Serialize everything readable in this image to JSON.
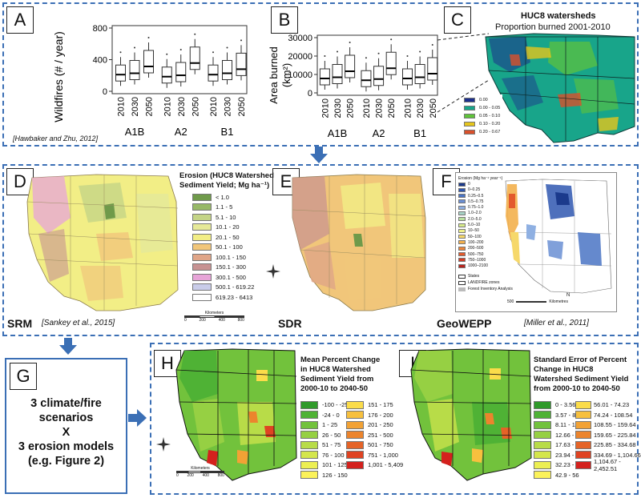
{
  "panel_a": {
    "letter": "A",
    "ylabel": "Wildfires (# / year)",
    "yticks": [
      "0",
      "400",
      "800"
    ],
    "xticks": [
      "2010",
      "2030",
      "2050",
      "2010",
      "2030",
      "2050",
      "2010",
      "2030",
      "2050"
    ],
    "groups": [
      "A1B",
      "A2",
      "B1"
    ],
    "citation": "[Hawbaker and Zhu, 2012]"
  },
  "panel_b": {
    "letter": "B",
    "ylabel": "Area burned",
    "ylabel_unit": "(km²)",
    "yticks": [
      "0",
      "10000",
      "20000",
      "30000"
    ],
    "xticks": [
      "2010",
      "2030",
      "2050",
      "2010",
      "2030",
      "2050",
      "2010",
      "2030",
      "2050"
    ],
    "groups": [
      "A1B",
      "A2",
      "B1"
    ]
  },
  "panel_c": {
    "letter": "C",
    "title": "HUC8 watersheds",
    "subtitle": "Proportion burned 2001-2010",
    "legend": [
      {
        "label": "0.00",
        "color": "#1d2f8c"
      },
      {
        "label": "0.00 - 0.05",
        "color": "#18a58a"
      },
      {
        "label": "0.05 - 0.10",
        "color": "#5fc33a"
      },
      {
        "label": "0.10 - 0.20",
        "color": "#e5c51c"
      },
      {
        "label": "0.20 - 0.67",
        "color": "#d9502b"
      }
    ]
  },
  "panel_d": {
    "letter": "D",
    "legend_title_1": "Erosion (HUC8 Watershed",
    "legend_title_2": "Sediment Yield; Mg ha⁻¹)",
    "legend": [
      {
        "label": "< 1.0",
        "color": "#6f9a4a"
      },
      {
        "label": "1.1 - 5",
        "color": "#97b867"
      },
      {
        "label": "5.1 - 10",
        "color": "#c4d486"
      },
      {
        "label": "10.1 - 20",
        "color": "#e6e998"
      },
      {
        "label": "20.1 - 50",
        "color": "#f2ee86"
      },
      {
        "label": "50.1 - 100",
        "color": "#f1c67a"
      },
      {
        "label": "100.1 - 150",
        "color": "#e0a587"
      },
      {
        "label": "150.1 - 300",
        "color": "#c79292"
      },
      {
        "label": "300.1 - 500",
        "color": "#e7a4d8"
      },
      {
        "label": "500.1 - 619.22",
        "color": "#c9cce9"
      },
      {
        "label": "619.23 - 6413",
        "color": "#ffffff"
      }
    ],
    "scale_label": "Kilometers",
    "scale_ticks": [
      "0",
      "200",
      "400",
      "800"
    ],
    "caption": "SRM",
    "citation": "[Sankey et al., 2015]"
  },
  "panel_e": {
    "letter": "E",
    "caption": "SDR"
  },
  "panel_f": {
    "letter": "F",
    "legend_title": "Erosion (Mg ha⁻¹ year⁻¹)",
    "legend": [
      {
        "label": "0",
        "color": "#1b3a8c"
      },
      {
        "label": "0–0.25",
        "color": "#2f57b0"
      },
      {
        "label": "0.25–0.5",
        "color": "#4a74c4"
      },
      {
        "label": "0.5–0.75",
        "color": "#6a8fd4"
      },
      {
        "label": "0.75–1.0",
        "color": "#8fb0e2"
      },
      {
        "label": "1.0–2.0",
        "color": "#a7d3c6"
      },
      {
        "label": "2.0–5.0",
        "color": "#b9e0a0"
      },
      {
        "label": "5.0–10",
        "color": "#d7eb8a"
      },
      {
        "label": "10–50",
        "color": "#eef08a"
      },
      {
        "label": "50–100",
        "color": "#f6d86a"
      },
      {
        "label": "100–200",
        "color": "#f3b04c"
      },
      {
        "label": "200–500",
        "color": "#ec8438"
      },
      {
        "label": "500–750",
        "color": "#e35a2c"
      },
      {
        "label": "750–1000",
        "color": "#d43d26"
      },
      {
        "label": "1000–2100",
        "color": "#b8231d"
      }
    ],
    "states_label": "States",
    "landfire_label": "LANDFIRE zones",
    "fia_label": "Forest Inventory Analysis",
    "scale_value": "500",
    "scale_unit": "Kilometres",
    "north": "N",
    "caption": "GeoWEPP",
    "citation": "[Miller et al., 2011]"
  },
  "panel_g": {
    "letter": "G",
    "line1": "3 climate/fire",
    "line2": "scenarios",
    "line3": "X",
    "line4": "3 erosion models",
    "line5": "(e.g. Figure 2)"
  },
  "panel_h": {
    "letter": "H",
    "title_lines": [
      "Mean Percent Change",
      "in HUC8 Watershed",
      "Sediment Yield from",
      "2000-10 to 2040-50"
    ],
    "legend_left": [
      {
        "label": "-100 - -25",
        "color": "#2f9a2a"
      },
      {
        "label": "-24 - 0",
        "color": "#4fb235"
      },
      {
        "label": "1 - 25",
        "color": "#72c23c"
      },
      {
        "label": "26 - 50",
        "color": "#96d043"
      },
      {
        "label": "51 - 75",
        "color": "#b8dc48"
      },
      {
        "label": "76 - 100",
        "color": "#d4e64c"
      },
      {
        "label": "101 - 125",
        "color": "#ecef52"
      },
      {
        "label": "126 - 150",
        "color": "#fbf25a"
      }
    ],
    "legend_right": [
      {
        "label": "151 - 175",
        "color": "#fbdc4a"
      },
      {
        "label": "176 - 200",
        "color": "#f7c03e"
      },
      {
        "label": "201 - 250",
        "color": "#f2a235"
      },
      {
        "label": "251 - 500",
        "color": "#ec842d"
      },
      {
        "label": "501 - 750",
        "color": "#e56327"
      },
      {
        "label": "751 - 1,000",
        "color": "#df4322"
      },
      {
        "label": "1,001 - 5,409",
        "color": "#d4211d"
      }
    ],
    "scale_label": "Kilometers",
    "scale_ticks": [
      "0",
      "200",
      "400",
      "800"
    ]
  },
  "panel_i": {
    "letter": "I",
    "title_lines": [
      "Standard Error of Percent",
      "Change in HUC8",
      "Watershed Sediment Yield",
      "from 2000-10 to 2040-50"
    ],
    "legend_left": [
      {
        "label": "0 - 3.56",
        "color": "#2f9a2a"
      },
      {
        "label": "3.57 - 8.1",
        "color": "#4fb235"
      },
      {
        "label": "8.11 - 12.65",
        "color": "#72c23c"
      },
      {
        "label": "12.66 - 17.62",
        "color": "#96d043"
      },
      {
        "label": "17.63 - 23.93",
        "color": "#b8dc48"
      },
      {
        "label": "23.94 - 32.22",
        "color": "#d4e64c"
      },
      {
        "label": "32.23 - 42.89",
        "color": "#ecef52"
      },
      {
        "label": "42.9 - 56",
        "color": "#fbf25a"
      }
    ],
    "legend_right": [
      {
        "label": "56.01 - 74.23",
        "color": "#fbdc4a"
      },
      {
        "label": "74.24 - 108.54",
        "color": "#f7c03e"
      },
      {
        "label": "108.55 - 159.64",
        "color": "#f2a235"
      },
      {
        "label": "159.65 - 225.84",
        "color": "#ec842d"
      },
      {
        "label": "225.85 - 334.68",
        "color": "#e56327"
      },
      {
        "label": "334.69 - 1,104.66",
        "color": "#df4322"
      },
      {
        "label": "1,104.67 - 2,452.51",
        "color": "#d4211d"
      }
    ]
  },
  "colors": {
    "dash_border": "#3b6fb5",
    "arrow": "#3b6fb5"
  }
}
